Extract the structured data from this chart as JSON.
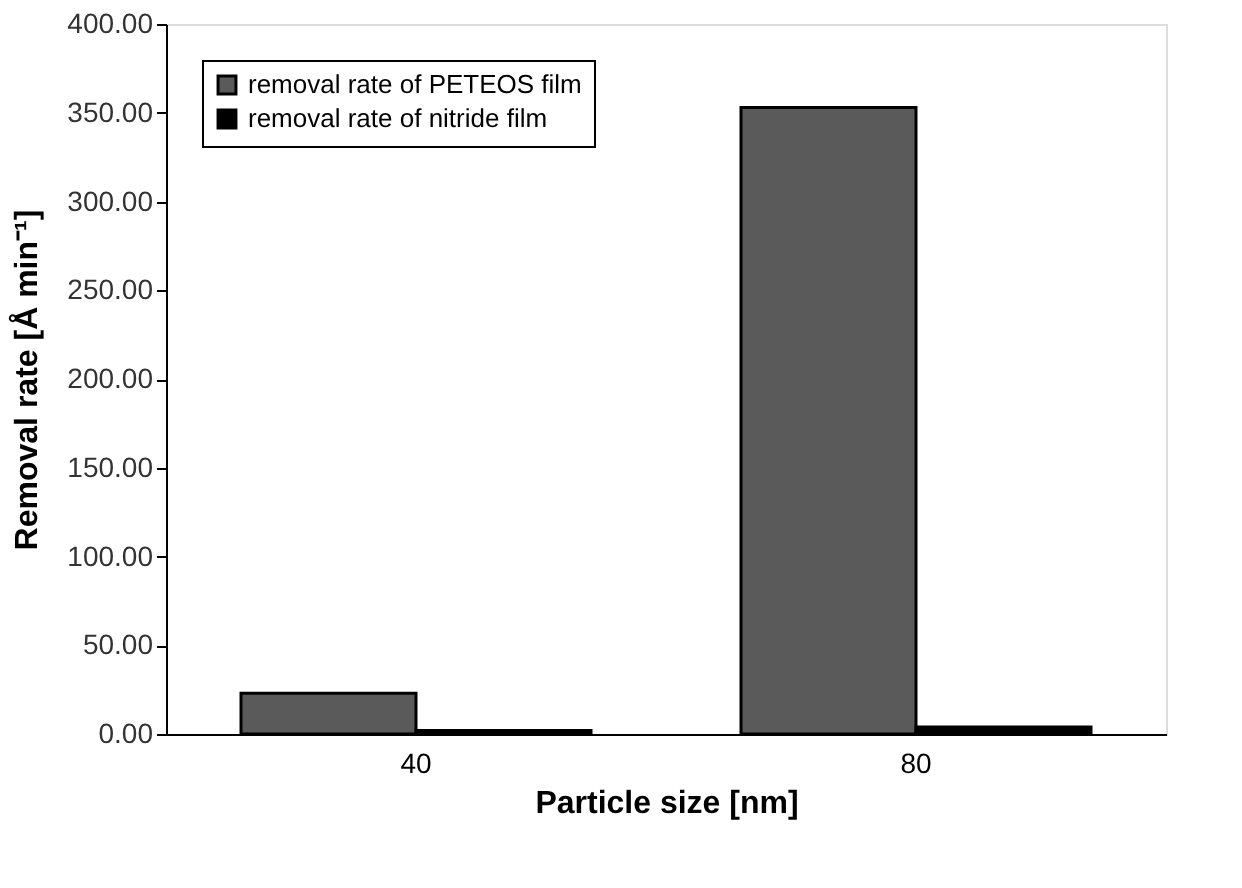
{
  "chart_data": {
    "type": "bar",
    "xlabel": "Particle size [nm]",
    "ylabel": "Removal rate [Å min⁻¹]",
    "categories": [
      "40",
      "80"
    ],
    "series": [
      {
        "name": "removal rate of PETEOS film",
        "color": "#5a5a5a",
        "values": [
          23,
          353
        ]
      },
      {
        "name": "removal rate of nitride film",
        "color": "#000000",
        "values": [
          2,
          4
        ]
      }
    ],
    "ylim": [
      0,
      400
    ],
    "yticks": [
      {
        "value": 0,
        "label": "0.00"
      },
      {
        "value": 50,
        "label": "50.00"
      },
      {
        "value": 100,
        "label": "100.00"
      },
      {
        "value": 150,
        "label": "150.00"
      },
      {
        "value": 200,
        "label": "200.00"
      },
      {
        "value": 250,
        "label": "250.00"
      },
      {
        "value": 300,
        "label": "300.00"
      },
      {
        "value": 350,
        "label": "350.00"
      },
      {
        "value": 400,
        "label": "400.00"
      }
    ],
    "grid": false,
    "legend": "top left"
  }
}
